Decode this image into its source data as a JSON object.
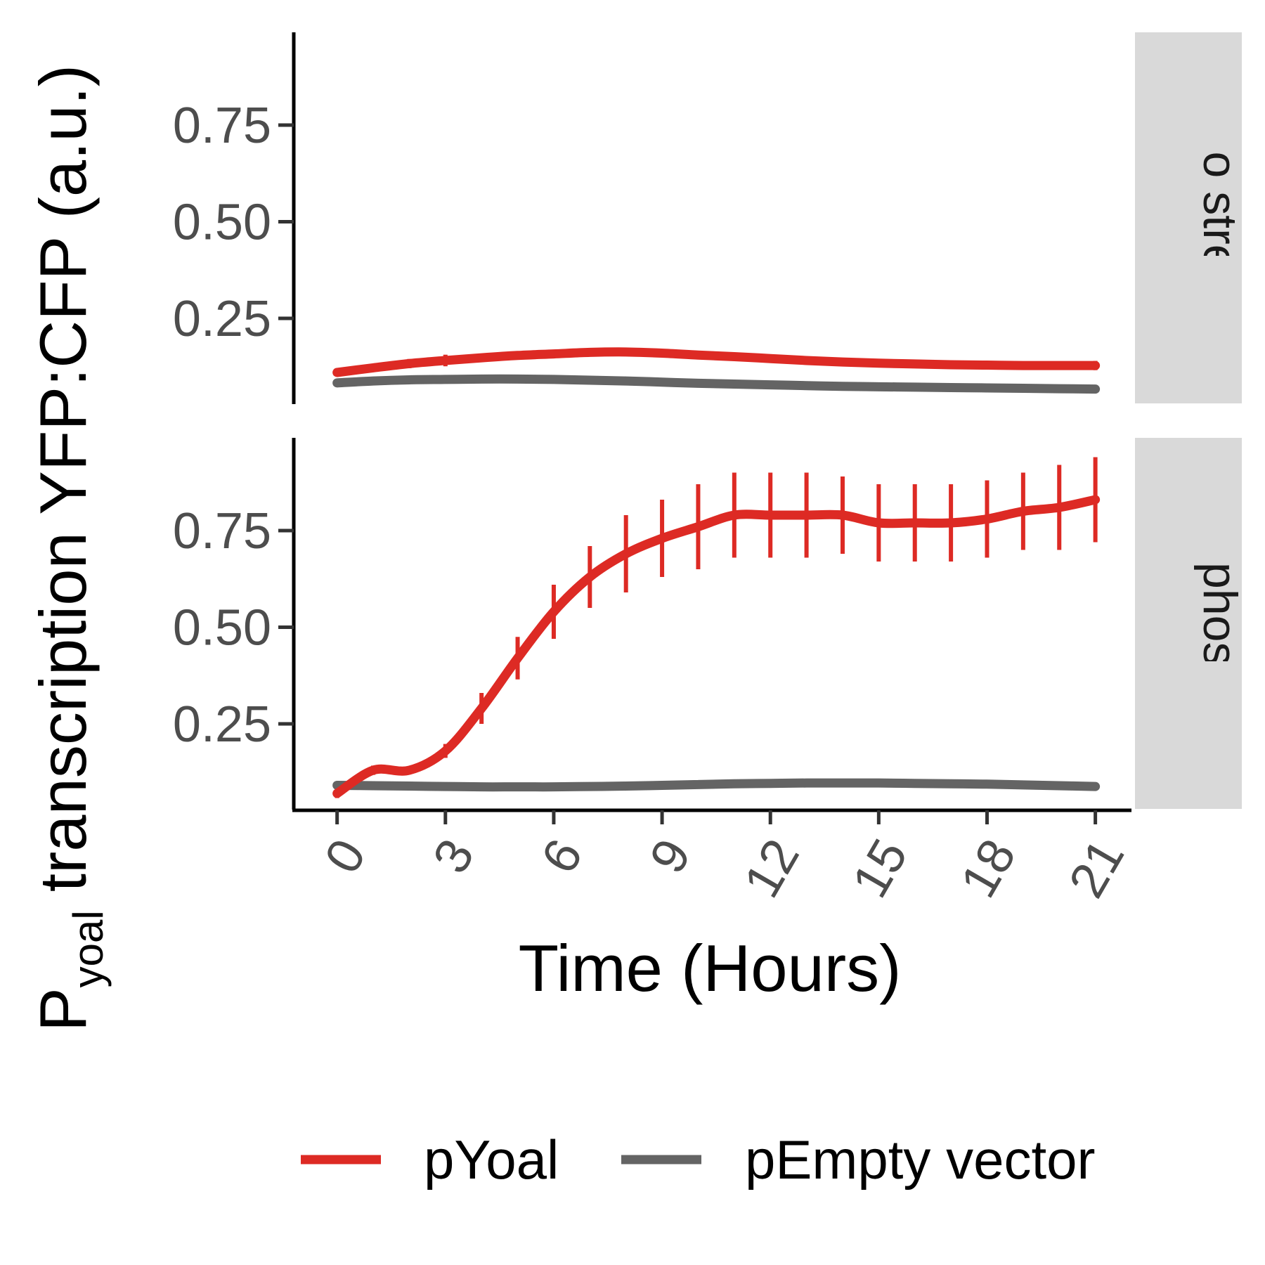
{
  "chart_data": {
    "type": "line",
    "facet_direction": "rows",
    "y_label": {
      "main": "P",
      "subscript": "yoal",
      "rest": " transcription YFP:CFP (a.u.)"
    },
    "x_label": "Time (Hours)",
    "x_ticks": [
      "0",
      "3",
      "6",
      "9",
      "12",
      "15",
      "18",
      "21"
    ],
    "x_tick_values": [
      0,
      3,
      6,
      9,
      12,
      15,
      18,
      21
    ],
    "x_range": [
      -1.2,
      22
    ],
    "y_ticks": [
      "0.25",
      "0.50",
      "0.75"
    ],
    "y_tick_values": [
      0.25,
      0.5,
      0.75
    ],
    "y_range": [
      0.03,
      0.99
    ],
    "grid": false,
    "legend_position": "bottom",
    "series_styles": [
      {
        "name": "pYoal",
        "color": "#dd2a24"
      },
      {
        "name": "pEmpty vector",
        "color": "#646464"
      }
    ],
    "panels": [
      {
        "strip": "No stress",
        "series": [
          {
            "name": "pYoal",
            "x": [
              0,
              1,
              2,
              3,
              4,
              5,
              6,
              7,
              8,
              9,
              10,
              11,
              12,
              13,
              14,
              15,
              16,
              17,
              18,
              19,
              20,
              21
            ],
            "y": [
              0.11,
              0.122,
              0.133,
              0.141,
              0.148,
              0.154,
              0.158,
              0.162,
              0.163,
              0.16,
              0.155,
              0.151,
              0.146,
              0.141,
              0.137,
              0.134,
              0.132,
              0.13,
              0.129,
              0.128,
              0.128,
              0.128
            ],
            "err": [
              0.01,
              0.006,
              0.012,
              0.015,
              0.008,
              0.006,
              0.01,
              0.01,
              0.008,
              0.006,
              0.006,
              0.006,
              0.006,
              0.006,
              0.006,
              0.006,
              0.006,
              0.006,
              0.006,
              0.01,
              0.008,
              0.012
            ]
          },
          {
            "name": "pEmpty vector",
            "x": [
              0,
              1,
              2,
              3,
              4,
              5,
              6,
              7,
              8,
              9,
              10,
              11,
              12,
              13,
              14,
              15,
              16,
              17,
              18,
              19,
              20,
              21
            ],
            "y": [
              0.083,
              0.088,
              0.091,
              0.092,
              0.093,
              0.093,
              0.092,
              0.09,
              0.088,
              0.085,
              0.082,
              0.08,
              0.078,
              0.076,
              0.074,
              0.073,
              0.072,
              0.071,
              0.07,
              0.069,
              0.068,
              0.067
            ],
            "err": [
              0.004,
              0.003,
              0.003,
              0.003,
              0.003,
              0.003,
              0.003,
              0.003,
              0.003,
              0.003,
              0.003,
              0.003,
              0.003,
              0.003,
              0.003,
              0.003,
              0.003,
              0.003,
              0.003,
              0.003,
              0.003,
              0.003
            ]
          }
        ]
      },
      {
        "strip": "Low phosphate",
        "series": [
          {
            "name": "pYoal",
            "x": [
              0,
              1,
              2,
              3,
              4,
              5,
              6,
              7,
              8,
              9,
              10,
              11,
              12,
              13,
              14,
              15,
              16,
              17,
              18,
              19,
              20,
              21
            ],
            "y": [
              0.07,
              0.13,
              0.13,
              0.18,
              0.29,
              0.42,
              0.54,
              0.63,
              0.69,
              0.73,
              0.76,
              0.79,
              0.79,
              0.79,
              0.79,
              0.77,
              0.77,
              0.77,
              0.78,
              0.8,
              0.81,
              0.83
            ],
            "err": [
              0.012,
              0.012,
              0.01,
              0.018,
              0.04,
              0.055,
              0.07,
              0.08,
              0.1,
              0.1,
              0.11,
              0.11,
              0.11,
              0.11,
              0.1,
              0.1,
              0.1,
              0.1,
              0.1,
              0.1,
              0.11,
              0.11
            ]
          },
          {
            "name": "pEmpty vector",
            "x": [
              0,
              1,
              2,
              3,
              4,
              5,
              6,
              7,
              8,
              9,
              10,
              11,
              12,
              13,
              14,
              15,
              16,
              17,
              18,
              19,
              20,
              21
            ],
            "y": [
              0.091,
              0.09,
              0.089,
              0.088,
              0.087,
              0.087,
              0.087,
              0.088,
              0.089,
              0.091,
              0.093,
              0.095,
              0.096,
              0.097,
              0.097,
              0.097,
              0.096,
              0.095,
              0.094,
              0.092,
              0.09,
              0.088
            ],
            "err": [
              0.004,
              0.003,
              0.003,
              0.003,
              0.003,
              0.003,
              0.003,
              0.003,
              0.003,
              0.003,
              0.003,
              0.003,
              0.003,
              0.006,
              0.006,
              0.006,
              0.006,
              0.006,
              0.006,
              0.006,
              0.006,
              0.006
            ]
          }
        ]
      }
    ]
  }
}
